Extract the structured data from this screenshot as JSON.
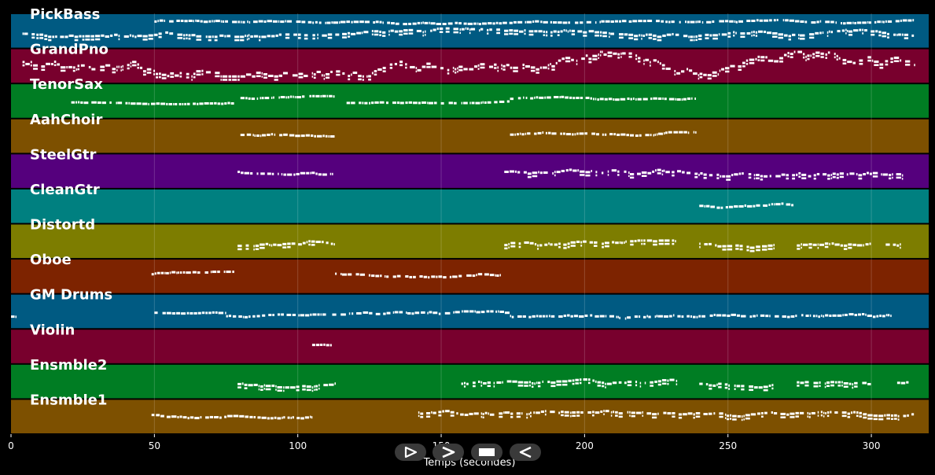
{
  "chart_data": {
    "type": "piano-roll",
    "xlabel": "Temps (secondes)",
    "xlim": [
      0,
      320
    ],
    "x_ticks": [
      0,
      50,
      100,
      150,
      200,
      250,
      300
    ],
    "x_tick_labels": [
      "0",
      "50",
      "100",
      "150",
      "200",
      "250",
      "300"
    ],
    "grid": true,
    "tracks": [
      {
        "name": "PickBass",
        "color": "#005a82",
        "segments": [
          [
            4,
            315,
            0.55,
            0.12
          ],
          [
            50,
            315,
            0.25,
            0.06
          ]
        ]
      },
      {
        "name": "GrandPno",
        "color": "#78002d",
        "segments": [
          [
            4,
            315,
            0.45,
            0.35
          ]
        ]
      },
      {
        "name": "TenorSax",
        "color": "#007d23",
        "segments": [
          [
            21,
            78,
            0.55,
            0.04
          ],
          [
            80,
            113,
            0.42,
            0.06
          ],
          [
            117,
            174,
            0.55,
            0.04
          ],
          [
            174,
            239,
            0.42,
            0.06
          ]
        ]
      },
      {
        "name": "AahChoir",
        "color": "#7d5000",
        "segments": [
          [
            80,
            113,
            0.45,
            0.06
          ],
          [
            174,
            239,
            0.45,
            0.06
          ]
        ]
      },
      {
        "name": "SteelGtr",
        "color": "#55007d",
        "segments": [
          [
            79,
            112,
            0.5,
            0.1
          ],
          [
            172,
            311,
            0.5,
            0.15
          ]
        ]
      },
      {
        "name": "CleanGtr",
        "color": "#008080",
        "segments": [
          [
            240,
            273,
            0.5,
            0.1
          ]
        ]
      },
      {
        "name": "Distortd",
        "color": "#7d7d00",
        "segments": [
          [
            79,
            113,
            0.6,
            0.12
          ],
          [
            172,
            232,
            0.6,
            0.12
          ],
          [
            240,
            266,
            0.6,
            0.12
          ],
          [
            274,
            300,
            0.6,
            0.12
          ],
          [
            305,
            310,
            0.6,
            0.12
          ]
        ]
      },
      {
        "name": "Oboe",
        "color": "#7d2300",
        "segments": [
          [
            49,
            78,
            0.45,
            0.08
          ],
          [
            113,
            171,
            0.45,
            0.08
          ]
        ]
      },
      {
        "name": "GM Drums",
        "color": "#005a82",
        "segments": [
          [
            0,
            2,
            0.65,
            0.04
          ],
          [
            50,
            75,
            0.55,
            0.04
          ],
          [
            75,
            110,
            0.65,
            0.06
          ],
          [
            112,
            174,
            0.6,
            0.1
          ],
          [
            174,
            307,
            0.62,
            0.1
          ]
        ]
      },
      {
        "name": "Violin",
        "color": "#78002d",
        "segments": [
          [
            105,
            112,
            0.45,
            0.06
          ]
        ]
      },
      {
        "name": "Ensmble2",
        "color": "#007d23",
        "segments": [
          [
            79,
            113,
            0.55,
            0.12
          ],
          [
            157,
            232,
            0.55,
            0.12
          ],
          [
            240,
            266,
            0.55,
            0.12
          ],
          [
            274,
            300,
            0.55,
            0.12
          ],
          [
            309,
            314,
            0.55,
            0.08
          ]
        ]
      },
      {
        "name": "Ensmble1",
        "color": "#7d5000",
        "segments": [
          [
            49,
            105,
            0.45,
            0.1
          ],
          [
            142,
            315,
            0.4,
            0.12
          ]
        ]
      }
    ]
  },
  "transport": {
    "play_icon": "play-outline-icon",
    "forward_icon": "forward-chevron-icon",
    "stop_icon": "stop-icon",
    "back_icon": "back-triangle-icon"
  }
}
